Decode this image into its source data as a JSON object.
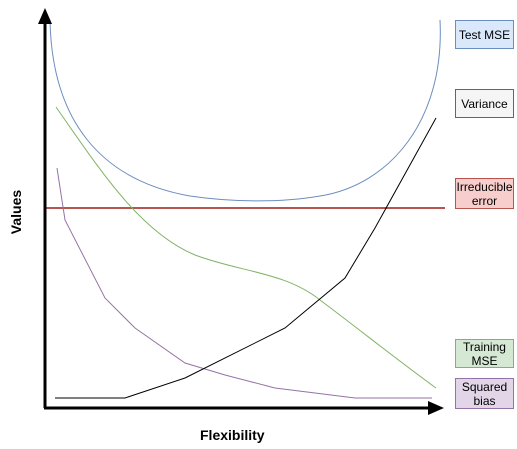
{
  "axes": {
    "x_title": "Flexibility",
    "y_title": "Values"
  },
  "colors": {
    "test_mse": "#6c8ebf",
    "variance": "#999999",
    "irreducible_error": "#b85450",
    "training_mse": "#82b366",
    "squared_bias": "#9673a6",
    "axis": "#000000"
  },
  "legend": [
    {
      "key": "test_mse",
      "text": "Test MSE",
      "fill": "#dae8fc",
      "border": "#6c8ebf"
    },
    {
      "key": "variance",
      "text": "Variance",
      "fill": "#f5f5f5",
      "border": "#666666"
    },
    {
      "key": "irreducible_error",
      "text": "Irreducible\nerror",
      "fill": "#f8cecc",
      "border": "#b85450"
    },
    {
      "key": "training_mse",
      "text": "Training\nMSE",
      "fill": "#d5e8d4",
      "border": "#82b366"
    },
    {
      "key": "squared_bias",
      "text": "Squared\nbias",
      "fill": "#e1d5e7",
      "border": "#9673a6"
    }
  ]
}
